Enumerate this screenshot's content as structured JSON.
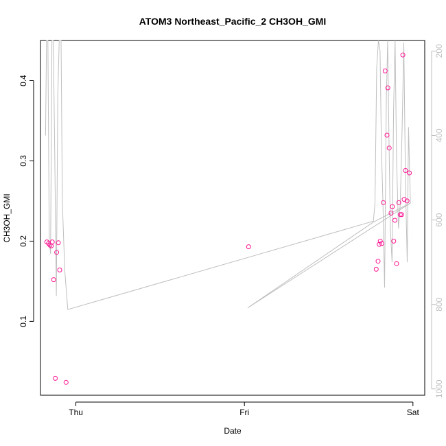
{
  "chart_data": {
    "type": "scatter",
    "title": "ATOM3 Northeast_Pacific_2 CH3OH_GMI",
    "xlabel": "Date",
    "ylabel": "CH3OH_GMI",
    "x_ticks": [
      {
        "day": 1.0,
        "label": "Thu"
      },
      {
        "day": 2.0,
        "label": "Fri"
      },
      {
        "day": 3.0,
        "label": "Sat"
      }
    ],
    "y_ticks": [
      0.1,
      0.2,
      0.3,
      0.4
    ],
    "y_tick_labels": [
      "0.1",
      "0.2",
      "0.3",
      "0.4"
    ],
    "ylim": [
      0.008,
      0.45
    ],
    "xlim": [
      0.79,
      3.07
    ],
    "right_axis": {
      "label": "",
      "ticks": [
        200,
        400,
        600,
        800,
        1000
      ],
      "tick_labels": [
        "200",
        "400",
        "600",
        "800",
        "1000"
      ],
      "lim": [
        175,
        1015
      ],
      "reversed": true,
      "color": "#bfbfbf"
    },
    "series": [
      {
        "kind": "points",
        "color": "#ff1493",
        "points": [
          [
            0.828,
            0.199
          ],
          [
            0.838,
            0.197
          ],
          [
            0.846,
            0.195
          ],
          [
            0.854,
            0.194
          ],
          [
            0.86,
            0.199
          ],
          [
            0.868,
            0.152
          ],
          [
            0.878,
            0.029
          ],
          [
            0.886,
            0.186
          ],
          [
            0.896,
            0.198
          ],
          [
            0.904,
            0.164
          ],
          [
            0.942,
            0.024
          ],
          [
            2.025,
            0.193
          ],
          [
            2.782,
            0.165
          ],
          [
            2.793,
            0.175
          ],
          [
            2.8,
            0.196
          ],
          [
            2.806,
            0.2
          ],
          [
            2.815,
            0.197
          ],
          [
            2.824,
            0.248
          ],
          [
            2.835,
            0.412
          ],
          [
            2.846,
            0.332
          ],
          [
            2.851,
            0.391
          ],
          [
            2.859,
            0.316
          ],
          [
            2.87,
            0.235
          ],
          [
            2.878,
            0.243
          ],
          [
            2.886,
            0.2
          ],
          [
            2.893,
            0.226
          ],
          [
            2.903,
            0.172
          ],
          [
            2.916,
            0.248
          ],
          [
            2.925,
            0.233
          ],
          [
            2.933,
            0.233
          ],
          [
            2.94,
            0.432
          ],
          [
            2.948,
            0.252
          ],
          [
            2.956,
            0.288
          ],
          [
            2.965,
            0.25
          ],
          [
            2.979,
            0.285
          ]
        ]
      },
      {
        "kind": "line",
        "axis": "right",
        "color": "#bfbfbf",
        "points": [
          [
            0.82,
            400
          ],
          [
            0.826,
            150
          ],
          [
            0.834,
            150
          ],
          [
            0.842,
            650
          ],
          [
            0.85,
            680
          ],
          [
            0.858,
            120
          ],
          [
            0.866,
            120
          ],
          [
            0.875,
            460
          ],
          [
            0.884,
            780
          ],
          [
            0.893,
            300
          ],
          [
            0.901,
            120
          ],
          [
            0.912,
            120
          ],
          [
            0.92,
            560
          ],
          [
            0.934,
            720
          ],
          [
            0.952,
            812
          ],
          [
            2.765,
            603
          ],
          [
            2.775,
            560
          ],
          [
            2.785,
            240
          ],
          [
            2.795,
            120
          ],
          [
            2.805,
            200
          ],
          [
            2.813,
            430
          ],
          [
            2.822,
            560
          ],
          [
            2.832,
            760
          ],
          [
            2.842,
            320
          ],
          [
            2.85,
            140
          ],
          [
            2.858,
            410
          ],
          [
            2.866,
            620
          ],
          [
            2.876,
            700
          ],
          [
            2.885,
            340
          ],
          [
            2.894,
            160
          ],
          [
            2.903,
            460
          ],
          [
            2.914,
            620
          ],
          [
            2.925,
            560
          ],
          [
            2.936,
            380
          ],
          [
            2.946,
            180
          ],
          [
            2.956,
            520
          ],
          [
            2.966,
            700
          ],
          [
            2.974,
            380
          ],
          [
            2.985,
            560
          ],
          [
            2.02,
            808
          ],
          [
            2.765,
            605
          ],
          [
            2.985,
            560
          ]
        ]
      }
    ],
    "grid": false
  }
}
